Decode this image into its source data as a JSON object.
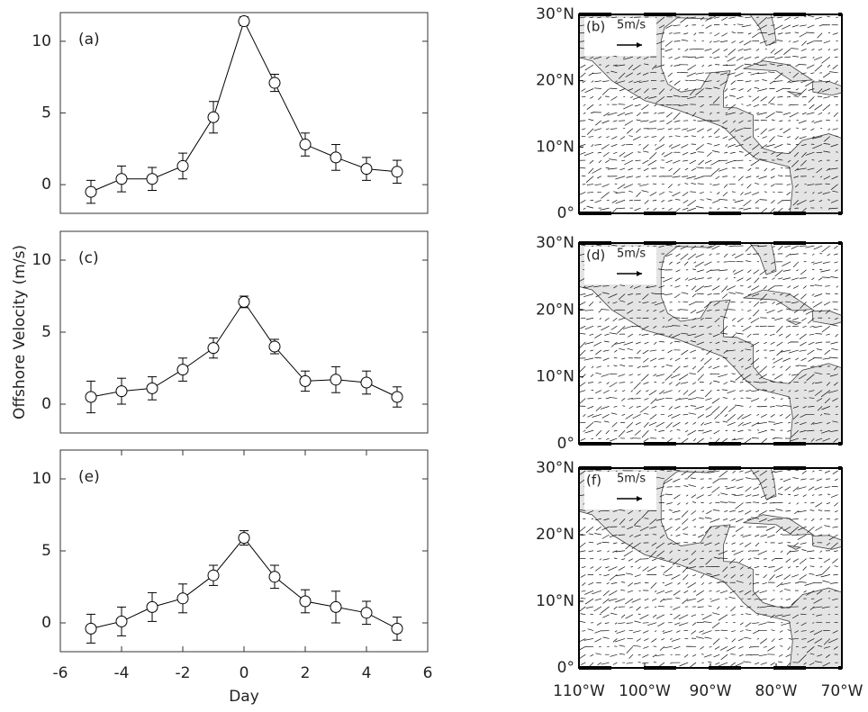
{
  "chart_data": [
    {
      "type": "line",
      "label": "(a)",
      "x": [
        -5,
        -4,
        -3,
        -2,
        -1,
        0,
        1,
        2,
        3,
        4,
        5
      ],
      "values": [
        -0.5,
        0.4,
        0.4,
        1.3,
        4.7,
        11.4,
        7.1,
        2.8,
        1.9,
        1.1,
        0.9
      ],
      "errors": [
        0.8,
        0.9,
        0.8,
        0.9,
        1.1,
        0.3,
        0.6,
        0.8,
        0.9,
        0.8,
        0.8
      ],
      "color": "#000000",
      "xlim": [
        -6,
        6
      ],
      "ylim": [
        -2,
        12
      ],
      "yticks": [
        0,
        5,
        10
      ]
    },
    {
      "type": "map",
      "label": "(b)",
      "scale_label": "5m/s",
      "xlim": [
        -110,
        -70
      ],
      "ylim": [
        0,
        30
      ],
      "yticks": [
        {
          "value": 0,
          "label": "0°"
        },
        {
          "value": 10,
          "label": "10°N"
        },
        {
          "value": 20,
          "label": "20°N"
        },
        {
          "value": 30,
          "label": "30°N"
        }
      ]
    },
    {
      "type": "line",
      "label": "(c)",
      "ylabel": "Offshore Velocity (m/s)",
      "x": [
        -5,
        -4,
        -3,
        -2,
        -1,
        0,
        1,
        2,
        3,
        4,
        5
      ],
      "values": [
        0.5,
        0.9,
        1.1,
        2.4,
        3.9,
        7.1,
        4.0,
        1.6,
        1.7,
        1.5,
        0.5
      ],
      "errors": [
        1.1,
        0.9,
        0.8,
        0.8,
        0.7,
        0.4,
        0.5,
        0.7,
        0.9,
        0.8,
        0.7
      ],
      "color": "#000000",
      "xlim": [
        -6,
        6
      ],
      "ylim": [
        -2,
        12
      ],
      "yticks": [
        0,
        5,
        10
      ]
    },
    {
      "type": "map",
      "label": "(d)",
      "scale_label": "5m/s",
      "xlim": [
        -110,
        -70
      ],
      "ylim": [
        0,
        30
      ],
      "yticks": [
        {
          "value": 0,
          "label": "0°"
        },
        {
          "value": 10,
          "label": "10°N"
        },
        {
          "value": 20,
          "label": "20°N"
        },
        {
          "value": 30,
          "label": "30°N"
        }
      ]
    },
    {
      "type": "line",
      "label": "(e)",
      "xlabel": "Day",
      "x": [
        -5,
        -4,
        -3,
        -2,
        -1,
        0,
        1,
        2,
        3,
        4,
        5
      ],
      "values": [
        -0.4,
        0.1,
        1.1,
        1.7,
        3.3,
        5.9,
        3.2,
        1.5,
        1.1,
        0.7,
        -0.4
      ],
      "errors": [
        1.0,
        1.0,
        1.0,
        1.0,
        0.7,
        0.5,
        0.8,
        0.8,
        1.1,
        0.8,
        0.8
      ],
      "color": "#000000",
      "xlim": [
        -6,
        6
      ],
      "ylim": [
        -2,
        12
      ],
      "yticks": [
        0,
        5,
        10
      ],
      "xticks": [
        -6,
        -4,
        -2,
        0,
        2,
        4,
        6
      ]
    },
    {
      "type": "map",
      "label": "(f)",
      "scale_label": "5m/s",
      "xlim": [
        -110,
        -70
      ],
      "ylim": [
        0,
        30
      ],
      "yticks": [
        {
          "value": 0,
          "label": "0°"
        },
        {
          "value": 10,
          "label": "10°N"
        },
        {
          "value": 20,
          "label": "20°N"
        },
        {
          "value": 30,
          "label": "30°N"
        }
      ],
      "xticks": [
        {
          "value": -110,
          "label": "110°W"
        },
        {
          "value": -100,
          "label": "100°W"
        },
        {
          "value": -90,
          "label": "90°W"
        },
        {
          "value": -80,
          "label": "80°W"
        },
        {
          "value": -70,
          "label": "70°W"
        }
      ]
    }
  ]
}
